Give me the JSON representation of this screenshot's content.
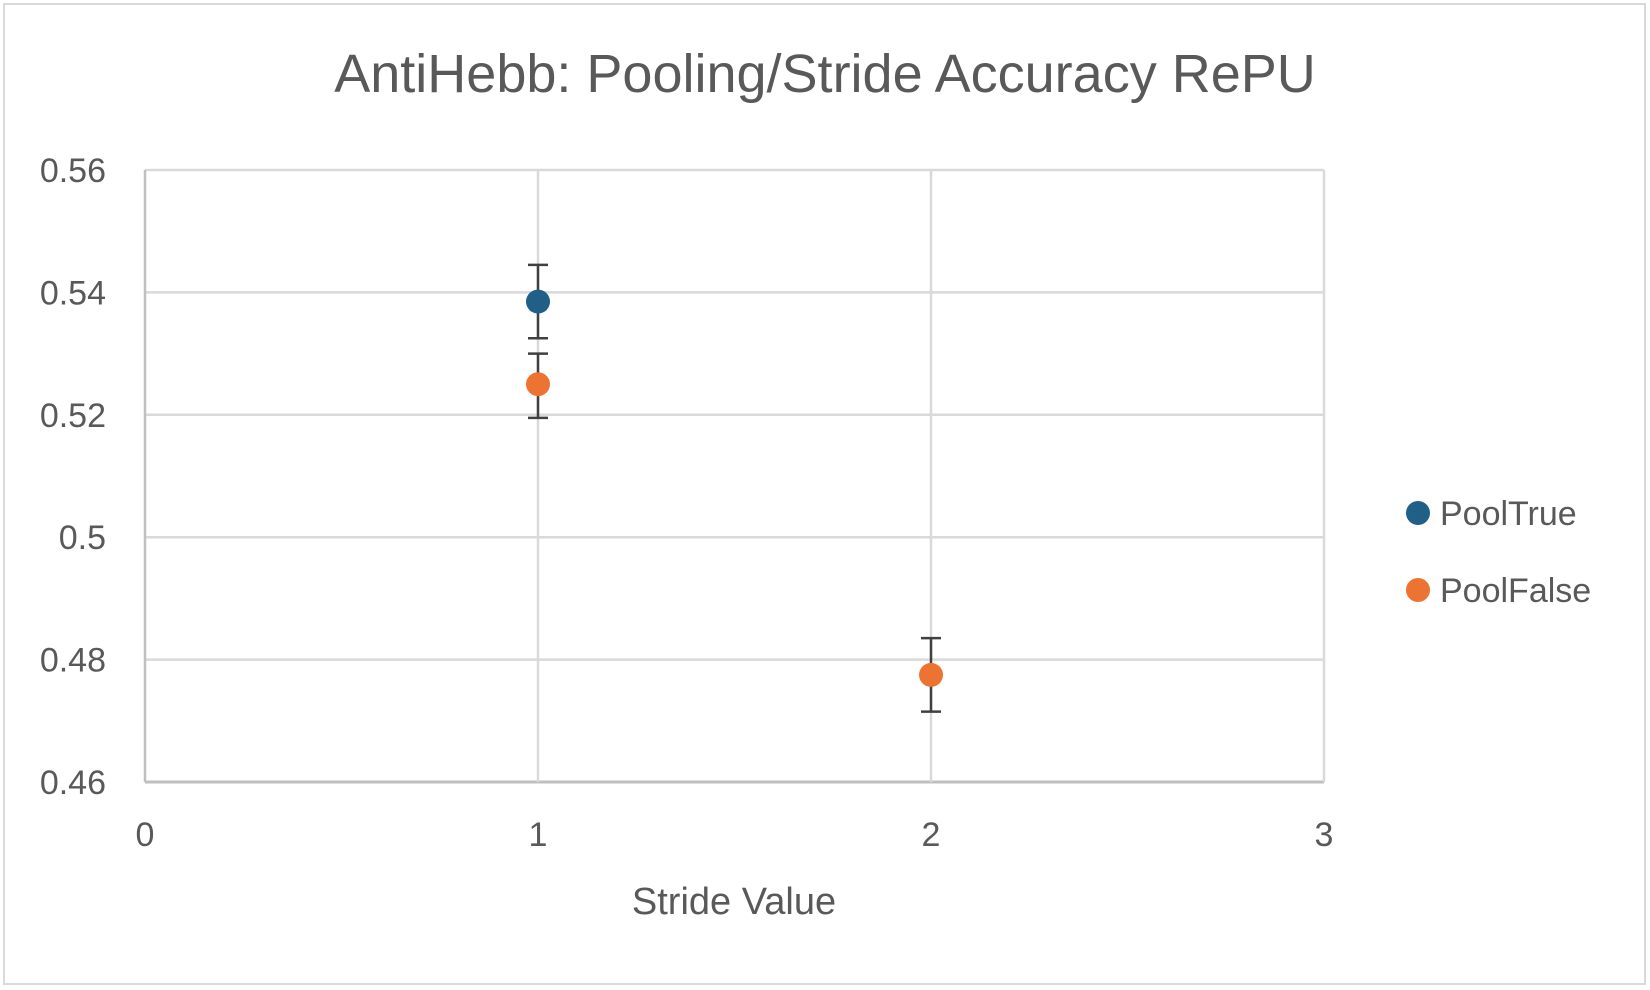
{
  "chart_data": {
    "type": "scatter",
    "title": "AntiHebb: Pooling/Stride Accuracy RePU",
    "xlabel": "Stride Value",
    "ylabel": "",
    "xlim": [
      0,
      3
    ],
    "ylim": [
      0.46,
      0.56
    ],
    "xticks": [
      0,
      1,
      2,
      3
    ],
    "xtick_labels": [
      "0",
      "1",
      "2",
      "3"
    ],
    "yticks": [
      0.46,
      0.48,
      0.5,
      0.52,
      0.54,
      0.56
    ],
    "ytick_labels": [
      "0.46",
      "0.48",
      "0.5",
      "0.52",
      "0.54",
      "0.56"
    ],
    "grid": true,
    "legend_position": "right",
    "series": [
      {
        "name": "PoolTrue",
        "color": "#1f5f88",
        "points": [
          {
            "x": 1,
            "y": 0.5385,
            "err_low": 0.5325,
            "err_high": 0.5445
          }
        ]
      },
      {
        "name": "PoolFalse",
        "color": "#ed7332",
        "points": [
          {
            "x": 1,
            "y": 0.525,
            "err_low": 0.5195,
            "err_high": 0.53
          },
          {
            "x": 2,
            "y": 0.4775,
            "err_low": 0.4715,
            "err_high": 0.4835
          }
        ]
      }
    ]
  }
}
